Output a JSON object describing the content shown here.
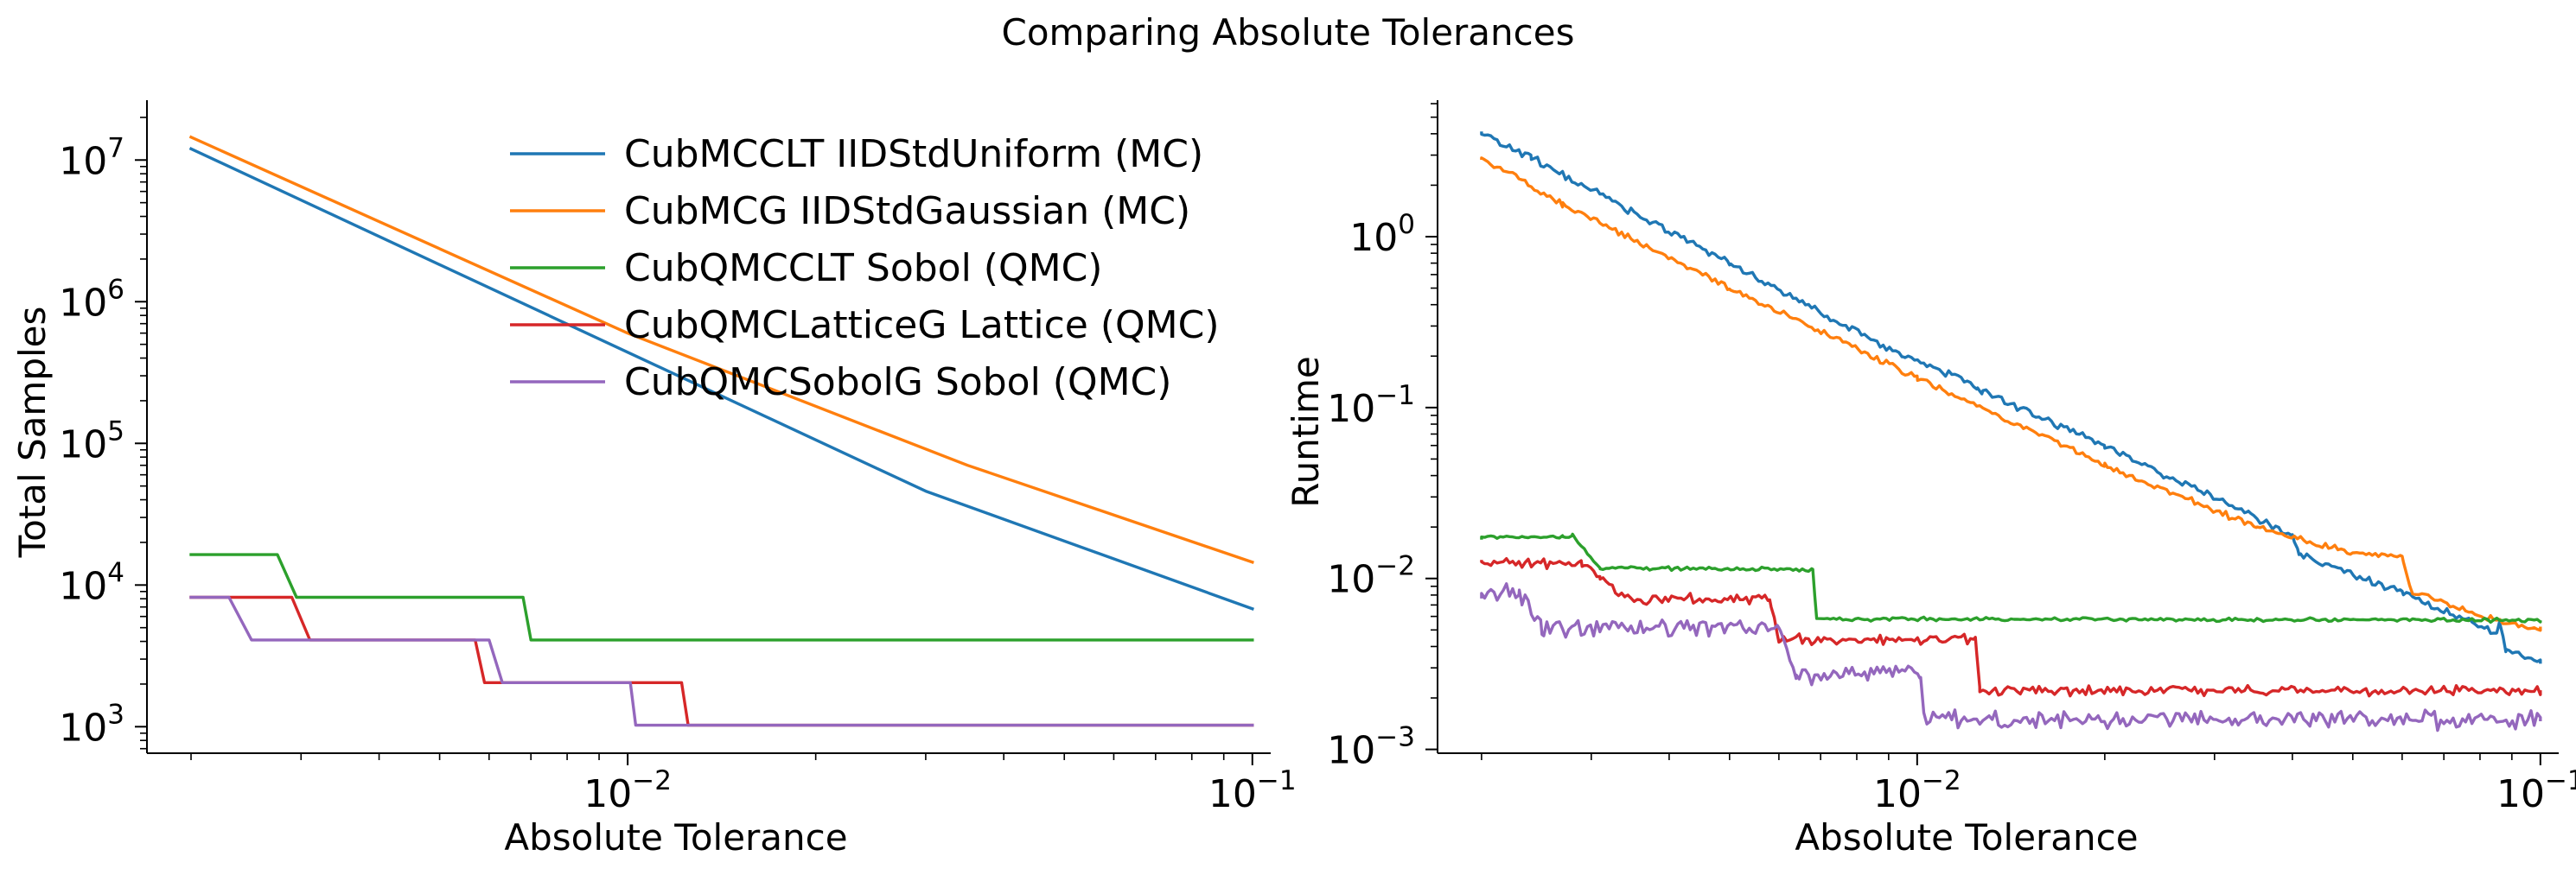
{
  "figure": {
    "title": "Comparing Absolute Tolerances"
  },
  "chart_data": [
    {
      "type": "line",
      "scale": {
        "x": "log",
        "y": "log"
      },
      "xlabel": "Absolute Tolerance",
      "ylabel": "Total Samples",
      "xlim": [
        0.0017,
        0.107
      ],
      "ylim": [
        650,
        25000000
      ],
      "x_ticks": [
        {
          "value": 0.01,
          "base": "10",
          "exp": "−2"
        },
        {
          "value": 0.1,
          "base": "10",
          "exp": "−1"
        }
      ],
      "y_ticks": [
        {
          "value": 1000,
          "base": "10",
          "exp": "3"
        },
        {
          "value": 10000,
          "base": "10",
          "exp": "4"
        },
        {
          "value": 100000,
          "base": "10",
          "exp": "5"
        },
        {
          "value": 1000000,
          "base": "10",
          "exp": "6"
        },
        {
          "value": 10000000,
          "base": "10",
          "exp": "7"
        }
      ],
      "legend": {
        "position": "top-right"
      },
      "series": [
        {
          "name": "CubMCCLT IIDStdUniform (MC)",
          "color": "#1f77b4",
          "kind": "line",
          "points": [
            [
              0.002,
              12000000
            ],
            [
              0.01,
              440000
            ],
            [
              0.03,
              46000
            ],
            [
              0.1,
              6800
            ]
          ]
        },
        {
          "name": "CubMCG IIDStdGaussian (MC)",
          "color": "#ff7f0e",
          "kind": "line",
          "points": [
            [
              0.002,
              14500000
            ],
            [
              0.01,
              600000
            ],
            [
              0.035,
              70000
            ],
            [
              0.1,
              14500
            ]
          ]
        },
        {
          "name": "CubQMCCLT Sobol (QMC)",
          "color": "#2ca02c",
          "kind": "step",
          "points": [
            [
              0.002,
              16384
            ],
            [
              0.00275,
              16384
            ],
            [
              0.00295,
              8192
            ],
            [
              0.0068,
              8192
            ],
            [
              0.007,
              4096
            ],
            [
              0.1,
              4096
            ]
          ]
        },
        {
          "name": "CubQMCLatticeG Lattice (QMC)",
          "color": "#d62728",
          "kind": "step",
          "points": [
            [
              0.002,
              8192
            ],
            [
              0.0029,
              8192
            ],
            [
              0.0031,
              4096
            ],
            [
              0.0057,
              4096
            ],
            [
              0.0059,
              2048
            ],
            [
              0.0122,
              2048
            ],
            [
              0.0125,
              1024
            ],
            [
              0.1,
              1024
            ]
          ]
        },
        {
          "name": "CubQMCSobolG Sobol (QMC)",
          "color": "#9467bd",
          "kind": "step",
          "points": [
            [
              0.002,
              8192
            ],
            [
              0.0023,
              8192
            ],
            [
              0.0025,
              4096
            ],
            [
              0.006,
              4096
            ],
            [
              0.0063,
              2048
            ],
            [
              0.0101,
              2048
            ],
            [
              0.0103,
              1024
            ],
            [
              0.1,
              1024
            ]
          ]
        }
      ]
    },
    {
      "type": "line",
      "scale": {
        "x": "log",
        "y": "log"
      },
      "xlabel": "Absolute Tolerance",
      "ylabel": "Runtime",
      "xlim": [
        0.0017,
        0.107
      ],
      "ylim": [
        0.00095,
        6
      ],
      "x_ticks": [
        {
          "value": 0.01,
          "base": "10",
          "exp": "−2"
        },
        {
          "value": 0.1,
          "base": "10",
          "exp": "−1"
        }
      ],
      "y_ticks": [
        {
          "value": 0.001,
          "base": "10",
          "exp": "−3"
        },
        {
          "value": 0.01,
          "base": "10",
          "exp": "−2"
        },
        {
          "value": 0.1,
          "base": "10",
          "exp": "−1"
        },
        {
          "value": 1,
          "base": "10",
          "exp": "0"
        }
      ],
      "series": [
        {
          "name": "CubMCCLT IIDStdUniform (MC)",
          "color": "#1f77b4",
          "kind": "line",
          "noise": 0.03,
          "points": [
            [
              0.002,
              4.0
            ],
            [
              0.0024,
              2.9
            ],
            [
              0.005,
              0.7
            ],
            [
              0.0095,
              0.2
            ],
            [
              0.0125,
              0.135
            ],
            [
              0.0127,
              0.125
            ],
            [
              0.02,
              0.06
            ],
            [
              0.025,
              0.04
            ],
            [
              0.034,
              0.024
            ],
            [
              0.04,
              0.018
            ],
            [
              0.041,
              0.014
            ],
            [
              0.06,
              0.0082
            ],
            [
              0.085,
              0.0048
            ],
            [
              0.086,
              0.0055
            ],
            [
              0.088,
              0.0038
            ],
            [
              0.1,
              0.0032
            ]
          ]
        },
        {
          "name": "CubMCG IIDStdGaussian (MC)",
          "color": "#ff7f0e",
          "kind": "line",
          "noise": 0.025,
          "points": [
            [
              0.002,
              2.9
            ],
            [
              0.0027,
              1.55
            ],
            [
              0.005,
              0.5
            ],
            [
              0.01,
              0.15
            ],
            [
              0.02,
              0.046
            ],
            [
              0.035,
              0.02
            ],
            [
              0.05,
              0.014
            ],
            [
              0.06,
              0.0135
            ],
            [
              0.062,
              0.0085
            ],
            [
              0.08,
              0.006
            ],
            [
              0.1,
              0.005
            ]
          ]
        },
        {
          "name": "CubQMCCLT Sobol (QMC)",
          "color": "#2ca02c",
          "kind": "line",
          "noise": 0.015,
          "points": [
            [
              0.002,
              0.0175
            ],
            [
              0.0027,
              0.0175
            ],
            [
              0.0028,
              0.018
            ],
            [
              0.0031,
              0.0115
            ],
            [
              0.0068,
              0.0113
            ],
            [
              0.0069,
              0.0058
            ],
            [
              0.1,
              0.0057
            ]
          ]
        },
        {
          "name": "CubQMCLatticeG Lattice (QMC)",
          "color": "#d62728",
          "kind": "line",
          "noise": 0.04,
          "points": [
            [
              0.002,
              0.0125
            ],
            [
              0.0029,
              0.0122
            ],
            [
              0.0031,
              0.0105
            ],
            [
              0.0034,
              0.0076
            ],
            [
              0.0058,
              0.0076
            ],
            [
              0.006,
              0.0044
            ],
            [
              0.0124,
              0.0044
            ],
            [
              0.0126,
              0.0022
            ],
            [
              0.1,
              0.0022
            ]
          ]
        },
        {
          "name": "CubQMCSobolG Sobol (QMC)",
          "color": "#9467bd",
          "kind": "line",
          "noise": 0.07,
          "points": [
            [
              0.002,
              0.0081
            ],
            [
              0.0023,
              0.0083
            ],
            [
              0.0025,
              0.0052
            ],
            [
              0.006,
              0.0051
            ],
            [
              0.0064,
              0.0027
            ],
            [
              0.0101,
              0.0029
            ],
            [
              0.0103,
              0.0015
            ],
            [
              0.1,
              0.0015
            ]
          ]
        }
      ]
    }
  ]
}
